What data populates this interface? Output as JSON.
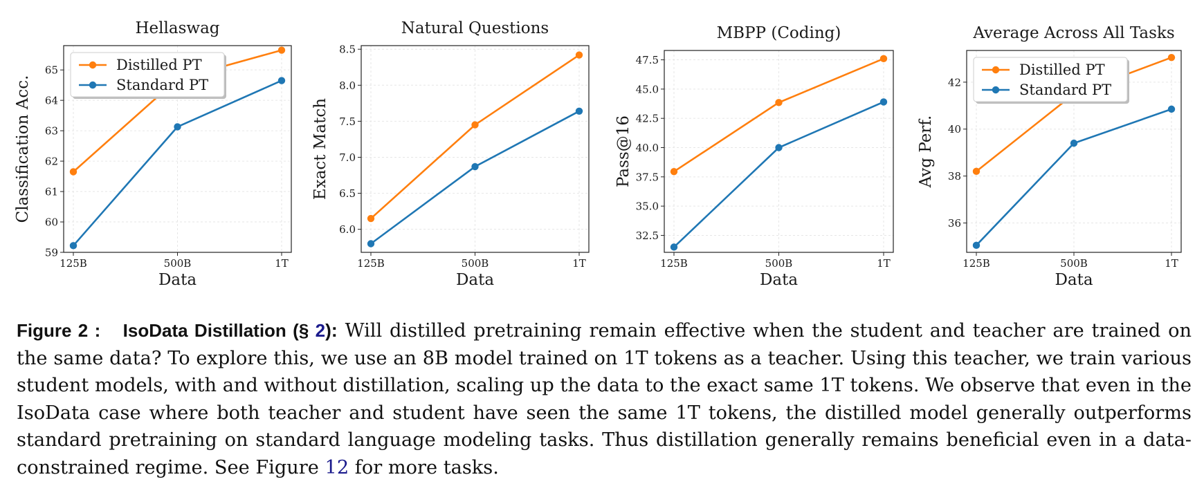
{
  "chart_data": [
    {
      "type": "line",
      "title": "Hellaswag",
      "xlabel": "Data",
      "ylabel": "Classification Acc.",
      "categories": [
        "125B",
        "500B",
        "1T"
      ],
      "series": [
        {
          "name": "Distilled PT",
          "values": [
            61.65,
            64.7,
            65.65
          ],
          "color": "#ff7f0e"
        },
        {
          "name": "Standard PT",
          "values": [
            59.22,
            63.13,
            64.65
          ],
          "color": "#1f77b4"
        }
      ],
      "ylim": [
        59,
        65.8
      ],
      "yticks": [
        59,
        60,
        61,
        62,
        63,
        64,
        65
      ],
      "legend": "upper-left",
      "grid": true
    },
    {
      "type": "line",
      "title": "Natural Questions",
      "xlabel": "Data",
      "ylabel": "Exact Match",
      "categories": [
        "125B",
        "500B",
        "1T"
      ],
      "series": [
        {
          "name": "Distilled PT",
          "values": [
            6.15,
            7.45,
            8.42
          ],
          "color": "#ff7f0e"
        },
        {
          "name": "Standard PT",
          "values": [
            5.8,
            6.87,
            7.64
          ],
          "color": "#1f77b4"
        }
      ],
      "ylim": [
        5.68,
        8.55
      ],
      "yticks": [
        6.0,
        6.5,
        7.0,
        7.5,
        8.0,
        8.5
      ],
      "legend": "none",
      "grid": true
    },
    {
      "type": "line",
      "title": "MBPP (Coding)",
      "xlabel": "Data",
      "ylabel": "Pass@16",
      "categories": [
        "125B",
        "500B",
        "1T"
      ],
      "series": [
        {
          "name": "Distilled PT",
          "values": [
            37.95,
            43.85,
            47.6
          ],
          "color": "#ff7f0e"
        },
        {
          "name": "Standard PT",
          "values": [
            31.5,
            40.0,
            43.9
          ],
          "color": "#1f77b4"
        }
      ],
      "ylim": [
        31.05,
        48.3
      ],
      "yticks": [
        32.5,
        35.0,
        37.5,
        40.0,
        42.5,
        45.0,
        47.5
      ],
      "legend": "none",
      "grid": true
    },
    {
      "type": "line",
      "title": "Average Across All Tasks",
      "xlabel": "Data",
      "ylabel": "Avg Perf.",
      "categories": [
        "125B",
        "500B",
        "1T"
      ],
      "series": [
        {
          "name": "Distilled PT",
          "values": [
            38.2,
            41.5,
            43.05
          ],
          "color": "#ff7f0e"
        },
        {
          "name": "Standard PT",
          "values": [
            35.05,
            39.4,
            40.85
          ],
          "color": "#1f77b4"
        }
      ],
      "ylim": [
        34.75,
        43.35
      ],
      "yticks": [
        36,
        38,
        40,
        42
      ],
      "legend": "upper-left",
      "grid": true
    }
  ],
  "caption": {
    "label": "Figure 2 :",
    "title": "IsoData Distillation (§ 2)",
    "title_prefix": "IsoData Distillation (§ ",
    "title_ref": "2",
    "title_suffix": ")",
    "separator": ":",
    "body_part1": "Will distilled pretraining remain effective when the student and teacher are trained on the same data? To explore this, we use an 8B model trained on 1T tokens as a teacher. Using this teacher, we train various student models, with and without distillation, scaling up the data to the exact same 1T tokens. We observe that even in the IsoData case where both teacher and student have seen the same 1T tokens, the distilled model generally outperforms standard pretraining on standard language modeling tasks. Thus distillation generally remains beneficial even in a data-constrained regime. See Figure ",
    "figure_ref": "12",
    "body_part2": " for more tasks."
  }
}
